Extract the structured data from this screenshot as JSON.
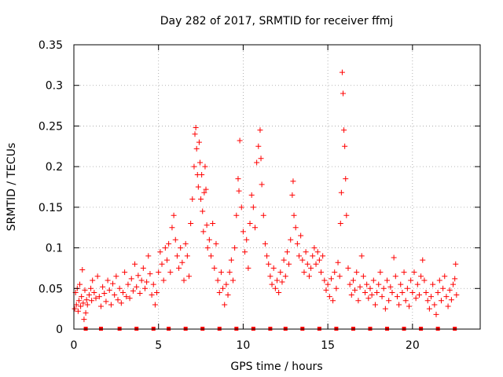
{
  "chart_data": {
    "type": "scatter",
    "title": "Day 282 of 2017, SRMTID for receiver ffmj",
    "xlabel": "GPS time / hours",
    "ylabel": "SRMTID / TECUs",
    "xlim": [
      0,
      24
    ],
    "ylim": [
      0,
      0.35
    ],
    "xticks": [
      0,
      5,
      10,
      15,
      20
    ],
    "xtick_labels": [
      "0",
      "5",
      "10",
      "15",
      "20"
    ],
    "yticks": [
      0,
      0.05,
      0.1,
      0.15,
      0.2,
      0.25,
      0.3,
      0.35
    ],
    "ytick_labels": [
      "0",
      "0.05",
      "0.1",
      "0.15",
      "0.2",
      "0.25",
      "0.3",
      "0.35"
    ],
    "grid": true,
    "marker": "plus",
    "color": "#ff0000",
    "series": [
      {
        "name": "SRMTID",
        "points": [
          [
            0.05,
            0.025
          ],
          [
            0.1,
            0.045
          ],
          [
            0.15,
            0.03
          ],
          [
            0.2,
            0.05
          ],
          [
            0.25,
            0.022
          ],
          [
            0.3,
            0.035
          ],
          [
            0.35,
            0.055
          ],
          [
            0.4,
            0.028
          ],
          [
            0.45,
            0.04
          ],
          [
            0.5,
            0.073
          ],
          [
            0.55,
            0.032
          ],
          [
            0.6,
            0.012
          ],
          [
            0.65,
            0.048
          ],
          [
            0.7,
            0.02
          ],
          [
            0.75,
            0.036
          ],
          [
            0.8,
            0.03
          ],
          [
            0.9,
            0.042
          ],
          [
            1.0,
            0.05
          ],
          [
            1.05,
            0.035
          ],
          [
            1.1,
            0.06
          ],
          [
            1.2,
            0.045
          ],
          [
            1.3,
            0.038
          ],
          [
            1.4,
            0.065
          ],
          [
            1.5,
            0.04
          ],
          [
            1.6,
            0.028
          ],
          [
            1.7,
            0.052
          ],
          [
            1.8,
            0.044
          ],
          [
            1.9,
            0.034
          ],
          [
            2.0,
            0.06
          ],
          [
            2.1,
            0.048
          ],
          [
            2.2,
            0.03
          ],
          [
            2.3,
            0.056
          ],
          [
            2.4,
            0.042
          ],
          [
            2.5,
            0.065
          ],
          [
            2.6,
            0.036
          ],
          [
            2.7,
            0.05
          ],
          [
            2.8,
            0.032
          ],
          [
            2.9,
            0.045
          ],
          [
            3.0,
            0.07
          ],
          [
            3.1,
            0.04
          ],
          [
            3.2,
            0.055
          ],
          [
            3.3,
            0.038
          ],
          [
            3.4,
            0.062
          ],
          [
            3.5,
            0.047
          ],
          [
            3.6,
            0.08
          ],
          [
            3.7,
            0.052
          ],
          [
            3.8,
            0.066
          ],
          [
            3.9,
            0.044
          ],
          [
            4.0,
            0.06
          ],
          [
            4.1,
            0.075
          ],
          [
            4.2,
            0.05
          ],
          [
            4.3,
            0.058
          ],
          [
            4.4,
            0.09
          ],
          [
            4.5,
            0.068
          ],
          [
            4.6,
            0.042
          ],
          [
            4.7,
            0.055
          ],
          [
            4.8,
            0.03
          ],
          [
            4.9,
            0.045
          ],
          [
            5.0,
            0.07
          ],
          [
            5.1,
            0.095
          ],
          [
            5.2,
            0.08
          ],
          [
            5.3,
            0.06
          ],
          [
            5.4,
            0.1
          ],
          [
            5.5,
            0.085
          ],
          [
            5.6,
            0.105
          ],
          [
            5.7,
            0.07
          ],
          [
            5.8,
            0.125
          ],
          [
            5.9,
            0.14
          ],
          [
            6.0,
            0.11
          ],
          [
            6.1,
            0.09
          ],
          [
            6.2,
            0.075
          ],
          [
            6.3,
            0.1
          ],
          [
            6.4,
            0.082
          ],
          [
            6.5,
            0.06
          ],
          [
            6.6,
            0.105
          ],
          [
            6.7,
            0.09
          ],
          [
            6.8,
            0.065
          ],
          [
            6.9,
            0.13
          ],
          [
            7.0,
            0.16
          ],
          [
            7.1,
            0.2
          ],
          [
            7.15,
            0.24
          ],
          [
            7.2,
            0.248
          ],
          [
            7.25,
            0.222
          ],
          [
            7.3,
            0.19
          ],
          [
            7.35,
            0.175
          ],
          [
            7.4,
            0.23
          ],
          [
            7.45,
            0.205
          ],
          [
            7.5,
            0.16
          ],
          [
            7.55,
            0.19
          ],
          [
            7.6,
            0.145
          ],
          [
            7.65,
            0.12
          ],
          [
            7.7,
            0.168
          ],
          [
            7.75,
            0.2
          ],
          [
            7.8,
            0.172
          ],
          [
            7.85,
            0.128
          ],
          [
            7.9,
            0.1
          ],
          [
            8.0,
            0.11
          ],
          [
            8.1,
            0.09
          ],
          [
            8.2,
            0.13
          ],
          [
            8.3,
            0.075
          ],
          [
            8.4,
            0.105
          ],
          [
            8.5,
            0.06
          ],
          [
            8.6,
            0.045
          ],
          [
            8.7,
            0.07
          ],
          [
            8.8,
            0.05
          ],
          [
            8.9,
            0.03
          ],
          [
            9.0,
            0.055
          ],
          [
            9.1,
            0.042
          ],
          [
            9.2,
            0.07
          ],
          [
            9.3,
            0.085
          ],
          [
            9.4,
            0.06
          ],
          [
            9.5,
            0.1
          ],
          [
            9.6,
            0.14
          ],
          [
            9.7,
            0.185
          ],
          [
            9.75,
            0.17
          ],
          [
            9.8,
            0.232
          ],
          [
            9.9,
            0.15
          ],
          [
            10.0,
            0.12
          ],
          [
            10.1,
            0.095
          ],
          [
            10.2,
            0.11
          ],
          [
            10.3,
            0.075
          ],
          [
            10.4,
            0.13
          ],
          [
            10.5,
            0.165
          ],
          [
            10.6,
            0.15
          ],
          [
            10.7,
            0.125
          ],
          [
            10.8,
            0.205
          ],
          [
            10.9,
            0.225
          ],
          [
            11.0,
            0.245
          ],
          [
            11.05,
            0.21
          ],
          [
            11.1,
            0.178
          ],
          [
            11.2,
            0.14
          ],
          [
            11.3,
            0.105
          ],
          [
            11.4,
            0.09
          ],
          [
            11.5,
            0.08
          ],
          [
            11.6,
            0.065
          ],
          [
            11.7,
            0.055
          ],
          [
            11.8,
            0.075
          ],
          [
            11.9,
            0.05
          ],
          [
            12.0,
            0.06
          ],
          [
            12.1,
            0.045
          ],
          [
            12.2,
            0.07
          ],
          [
            12.3,
            0.058
          ],
          [
            12.4,
            0.085
          ],
          [
            12.5,
            0.065
          ],
          [
            12.6,
            0.095
          ],
          [
            12.7,
            0.08
          ],
          [
            12.8,
            0.11
          ],
          [
            12.9,
            0.165
          ],
          [
            12.95,
            0.182
          ],
          [
            13.0,
            0.14
          ],
          [
            13.1,
            0.125
          ],
          [
            13.2,
            0.105
          ],
          [
            13.3,
            0.09
          ],
          [
            13.4,
            0.115
          ],
          [
            13.5,
            0.085
          ],
          [
            13.6,
            0.07
          ],
          [
            13.7,
            0.095
          ],
          [
            13.8,
            0.08
          ],
          [
            13.9,
            0.065
          ],
          [
            14.0,
            0.075
          ],
          [
            14.1,
            0.09
          ],
          [
            14.2,
            0.1
          ],
          [
            14.3,
            0.08
          ],
          [
            14.4,
            0.095
          ],
          [
            14.5,
            0.085
          ],
          [
            14.6,
            0.07
          ],
          [
            14.7,
            0.09
          ],
          [
            14.8,
            0.06
          ],
          [
            14.9,
            0.048
          ],
          [
            15.0,
            0.055
          ],
          [
            15.1,
            0.04
          ],
          [
            15.2,
            0.062
          ],
          [
            15.3,
            0.035
          ],
          [
            15.4,
            0.07
          ],
          [
            15.5,
            0.05
          ],
          [
            15.6,
            0.082
          ],
          [
            15.7,
            0.065
          ],
          [
            15.75,
            0.13
          ],
          [
            15.8,
            0.168
          ],
          [
            15.85,
            0.316
          ],
          [
            15.9,
            0.29
          ],
          [
            15.95,
            0.245
          ],
          [
            16.0,
            0.225
          ],
          [
            16.05,
            0.185
          ],
          [
            16.1,
            0.14
          ],
          [
            16.2,
            0.075
          ],
          [
            16.3,
            0.055
          ],
          [
            16.4,
            0.042
          ],
          [
            16.5,
            0.06
          ],
          [
            16.6,
            0.048
          ],
          [
            16.7,
            0.07
          ],
          [
            16.8,
            0.035
          ],
          [
            16.9,
            0.052
          ],
          [
            17.0,
            0.09
          ],
          [
            17.1,
            0.065
          ],
          [
            17.2,
            0.045
          ],
          [
            17.3,
            0.055
          ],
          [
            17.4,
            0.038
          ],
          [
            17.5,
            0.05
          ],
          [
            17.6,
            0.042
          ],
          [
            17.7,
            0.06
          ],
          [
            17.8,
            0.03
          ],
          [
            17.9,
            0.045
          ],
          [
            18.0,
            0.055
          ],
          [
            18.1,
            0.07
          ],
          [
            18.2,
            0.04
          ],
          [
            18.3,
            0.05
          ],
          [
            18.4,
            0.025
          ],
          [
            18.5,
            0.06
          ],
          [
            18.6,
            0.035
          ],
          [
            18.7,
            0.052
          ],
          [
            18.8,
            0.045
          ],
          [
            18.9,
            0.088
          ],
          [
            19.0,
            0.065
          ],
          [
            19.1,
            0.04
          ],
          [
            19.2,
            0.03
          ],
          [
            19.3,
            0.055
          ],
          [
            19.4,
            0.045
          ],
          [
            19.5,
            0.07
          ],
          [
            19.6,
            0.035
          ],
          [
            19.7,
            0.05
          ],
          [
            19.8,
            0.028
          ],
          [
            19.9,
            0.06
          ],
          [
            20.0,
            0.045
          ],
          [
            20.1,
            0.07
          ],
          [
            20.2,
            0.038
          ],
          [
            20.3,
            0.055
          ],
          [
            20.4,
            0.042
          ],
          [
            20.5,
            0.065
          ],
          [
            20.6,
            0.085
          ],
          [
            20.7,
            0.06
          ],
          [
            20.8,
            0.045
          ],
          [
            20.9,
            0.035
          ],
          [
            21.0,
            0.025
          ],
          [
            21.1,
            0.04
          ],
          [
            21.2,
            0.055
          ],
          [
            21.3,
            0.03
          ],
          [
            21.4,
            0.018
          ],
          [
            21.5,
            0.045
          ],
          [
            21.6,
            0.06
          ],
          [
            21.7,
            0.035
          ],
          [
            21.8,
            0.05
          ],
          [
            21.9,
            0.065
          ],
          [
            22.0,
            0.04
          ],
          [
            22.1,
            0.028
          ],
          [
            22.2,
            0.048
          ],
          [
            22.3,
            0.036
          ],
          [
            22.4,
            0.055
          ],
          [
            22.5,
            0.062
          ],
          [
            22.55,
            0.08
          ],
          [
            22.6,
            0.042
          ]
        ]
      }
    ],
    "gap_markers": {
      "y": 0,
      "x": [
        0.7,
        1.6,
        2.7,
        3.7,
        4.7,
        5.6,
        6.6,
        7.6,
        8.6,
        9.6,
        10.6,
        11.6,
        12.5,
        13.5,
        14.5,
        15.5,
        16.5,
        17.5,
        18.5,
        19.5,
        20.5,
        21.5,
        22.5
      ]
    }
  }
}
